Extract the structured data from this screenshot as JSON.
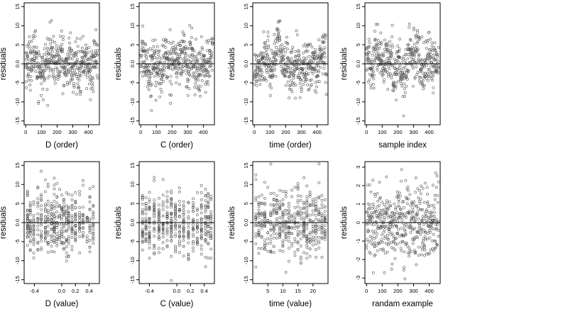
{
  "figure": {
    "background": "#ffffff",
    "point_color": "#555555",
    "axis_color": "#000000"
  },
  "chart_data": [
    {
      "type": "scatter",
      "xlabel": "D (order)",
      "ylabel": "residuals",
      "xlim": [
        -10,
        470
      ],
      "ylim": [
        -16,
        16
      ],
      "xticks": [
        0,
        100,
        200,
        300,
        400
      ],
      "xtick_labels": [
        "0",
        "100",
        "200",
        "300",
        "400"
      ],
      "yticks": [
        -15,
        -10,
        -5,
        0,
        5,
        10,
        15
      ],
      "ytick_labels": [
        "-15",
        "-10",
        "-5",
        "0.0",
        "5",
        "10",
        "15"
      ],
      "hline": 0,
      "n_points": 460,
      "point_pattern": "order-segments",
      "spread": 4.2
    },
    {
      "type": "scatter",
      "xlabel": "C (order)",
      "ylabel": "residuals",
      "xlim": [
        -10,
        470
      ],
      "ylim": [
        -16,
        16
      ],
      "xticks": [
        0,
        100,
        200,
        300,
        400
      ],
      "xtick_labels": [
        "0",
        "100",
        "200",
        "300",
        "400"
      ],
      "yticks": [
        -15,
        -10,
        -5,
        0,
        5,
        10,
        15
      ],
      "ytick_labels": [
        "-15",
        "-10",
        "-5",
        "0.0",
        "5",
        "10",
        "15"
      ],
      "hline": 0,
      "n_points": 460,
      "point_pattern": "order-segments",
      "spread": 4.2
    },
    {
      "type": "scatter",
      "xlabel": "time (order)",
      "ylabel": "residuals",
      "xlim": [
        -10,
        470
      ],
      "ylim": [
        -16,
        16
      ],
      "xticks": [
        0,
        100,
        200,
        300,
        400
      ],
      "xtick_labels": [
        "0",
        "100",
        "200",
        "300",
        "400"
      ],
      "yticks": [
        -15,
        -10,
        -5,
        0,
        5,
        10,
        15
      ],
      "ytick_labels": [
        "-15",
        "-10",
        "-5",
        "0.0",
        "5",
        "10",
        "15"
      ],
      "hline": 0,
      "n_points": 460,
      "point_pattern": "order-trend",
      "spread": 4.2
    },
    {
      "type": "scatter",
      "xlabel": "sample index",
      "ylabel": "residuals",
      "xlim": [
        -10,
        470
      ],
      "ylim": [
        -16,
        16
      ],
      "xticks": [
        0,
        100,
        200,
        300,
        400
      ],
      "xtick_labels": [
        "0",
        "100",
        "200",
        "300",
        "400"
      ],
      "yticks": [
        -15,
        -10,
        -5,
        0,
        5,
        10,
        15
      ],
      "ytick_labels": [
        "-15",
        "-10",
        "-5",
        "0.0",
        "5",
        "10",
        "15"
      ],
      "hline": 0,
      "n_points": 460,
      "point_pattern": "order-segments",
      "spread": 4.2
    },
    {
      "type": "scatter",
      "xlabel": "D (value)",
      "ylabel": "residuals",
      "xlim": [
        -0.55,
        0.55
      ],
      "ylim": [
        -16,
        16
      ],
      "xticks": [
        -0.4,
        0.0,
        0.2,
        0.4
      ],
      "xtick_labels": [
        "-0.4",
        "0.0",
        "0.2",
        "0.4"
      ],
      "yticks": [
        -15,
        -10,
        -5,
        0,
        5,
        10,
        15
      ],
      "ytick_labels": [
        "-15",
        "-10",
        "-5",
        "0.0",
        "5",
        "10",
        "15"
      ],
      "hline": 0,
      "n_points": 460,
      "point_pattern": "value-columns",
      "column_values": [
        -0.5,
        -0.46,
        -0.41,
        -0.35,
        -0.3,
        -0.24,
        -0.2,
        -0.15,
        -0.11,
        -0.07,
        -0.03,
        0.0,
        0.03,
        0.07,
        0.1,
        0.15,
        0.2,
        0.26,
        0.31,
        0.37,
        0.41,
        0.46
      ],
      "spread": 4.2
    },
    {
      "type": "scatter",
      "xlabel": "C (value)",
      "ylabel": "residuals",
      "xlim": [
        -0.55,
        0.55
      ],
      "ylim": [
        -16,
        16
      ],
      "xticks": [
        -0.4,
        0.0,
        0.2,
        0.4
      ],
      "xtick_labels": [
        "-0.4",
        "0.0",
        "0.2",
        "0.4"
      ],
      "yticks": [
        -15,
        -10,
        -5,
        0,
        5,
        10,
        15
      ],
      "ytick_labels": [
        "-15",
        "-10",
        "-5",
        "0.0",
        "5",
        "10",
        "15"
      ],
      "hline": 0,
      "n_points": 460,
      "point_pattern": "value-columns",
      "column_values": [
        -0.5,
        -0.45,
        -0.4,
        -0.33,
        -0.26,
        -0.2,
        -0.14,
        -0.08,
        -0.02,
        0.04,
        0.1,
        0.17,
        0.24,
        0.3,
        0.36,
        0.42,
        0.46,
        0.5
      ],
      "spread": 4.2
    },
    {
      "type": "scatter",
      "xlabel": "time (value)",
      "ylabel": "residuals",
      "xlim": [
        0,
        25
      ],
      "ylim": [
        -16,
        16
      ],
      "xticks": [
        5,
        10,
        15,
        20
      ],
      "xtick_labels": [
        "5",
        "10",
        "15",
        "20"
      ],
      "yticks": [
        -15,
        -10,
        -5,
        0,
        5,
        10,
        15
      ],
      "ytick_labels": [
        "-15",
        "-10",
        "-5",
        "0.0",
        "5",
        "10",
        "15"
      ],
      "hline": 0,
      "n_points": 460,
      "point_pattern": "value-columns",
      "column_values": [
        1,
        2,
        3,
        4,
        5,
        6,
        7,
        8,
        9,
        10,
        11,
        12,
        13,
        14,
        15,
        16,
        17,
        18,
        19,
        20,
        21,
        22,
        23,
        24
      ],
      "spread": 4.2
    },
    {
      "type": "scatter",
      "xlabel": "randam example",
      "ylabel": "residuals",
      "xlim": [
        -10,
        470
      ],
      "ylim": [
        -3.3,
        3.3
      ],
      "xticks": [
        0,
        100,
        200,
        300,
        400
      ],
      "xtick_labels": [
        "0",
        "100",
        "200",
        "300",
        "400"
      ],
      "yticks": [
        -3,
        -2,
        -1,
        0,
        1,
        2,
        3
      ],
      "ytick_labels": [
        "-3",
        "-2",
        "-1",
        "0",
        "1",
        "2",
        "3"
      ],
      "hline": 0,
      "n_points": 460,
      "point_pattern": "random-normal",
      "spread": 1.0
    }
  ]
}
